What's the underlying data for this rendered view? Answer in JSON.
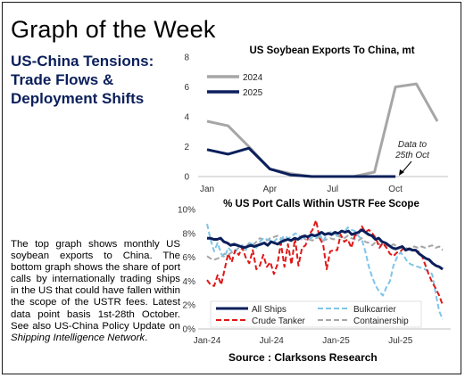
{
  "page": {
    "title": "Graph of the Week",
    "subtitle": "US-China Tensions: Trade Flows & Deployment Shifts",
    "description_parts": [
      "The top graph shows monthly US soybean exports to China. The bottom graph shows the share of port calls by internationally trading ships in the US that could have fallen within the scope of the USTR fees. Latest data point basis 1st-28th October. See also US-China Policy Update on ",
      "Shipping Intelligence Network",
      "."
    ],
    "source": "Source : Clarksons Research"
  },
  "chart_data": [
    {
      "type": "line",
      "title": "US Soybean Exports To China, mt",
      "x_tick_labels": [
        "Jan",
        "Apr",
        "Jul",
        "Oct"
      ],
      "y_ticks": [
        0,
        2,
        4,
        6,
        8
      ],
      "ylim": [
        0,
        8
      ],
      "months": 12,
      "series": [
        {
          "name": "2024",
          "color": "#a6a6a6",
          "values": [
            3.7,
            3.4,
            2.0,
            0.5,
            0.2,
            0.0,
            0.0,
            0.0,
            0.3,
            6.0,
            6.2,
            3.7
          ]
        },
        {
          "name": "2025",
          "color": "#0b1f5b",
          "values": [
            1.8,
            1.5,
            1.9,
            0.5,
            0.1,
            0.0,
            0.0,
            0.0,
            0.0,
            0.0
          ]
        }
      ],
      "annotation": "Data to 25th Oct",
      "legend": "top-left"
    },
    {
      "type": "line",
      "title": "% US Port Calls Within USTR Fee Scope",
      "x_tick_labels": [
        "Jan-24",
        "Jul-24",
        "Jan-25",
        "Jul-25"
      ],
      "y_ticks": [
        "0%",
        "2%",
        "4%",
        "6%",
        "8%",
        "10%"
      ],
      "ylim": [
        0,
        10
      ],
      "weeks": 96,
      "legend": "bottom",
      "series": [
        {
          "name": "All Ships",
          "color": "#0b1f5b",
          "style": "solid",
          "values": [
            7.6,
            7.6,
            7.5,
            7.5,
            7.6,
            7.3,
            7.2,
            7.0,
            7.1,
            7.0,
            6.9,
            6.8,
            6.9,
            7.0,
            6.9,
            7.0,
            7.1,
            7.2,
            7.0,
            7.3,
            7.2,
            7.1,
            7.3,
            7.4,
            7.5,
            7.4,
            7.6,
            7.5,
            7.7,
            7.8,
            7.7,
            7.9,
            7.8,
            7.9,
            8.1,
            7.9,
            8.0,
            7.9,
            8.1,
            8.0,
            8.2,
            8.1,
            8.2,
            7.9,
            8.0,
            8.1,
            8.3,
            8.1,
            7.9,
            7.8,
            7.5,
            7.6,
            7.3,
            7.2,
            7.0,
            6.8,
            6.7,
            6.8,
            6.9,
            6.6,
            6.7,
            6.6,
            6.6,
            6.3,
            6.1,
            5.9,
            5.8,
            5.5,
            5.3,
            5.2,
            5.0
          ]
        },
        {
          "name": "Bulkcarrier",
          "color": "#7fc4ea",
          "style": "dashed",
          "values": [
            8.8,
            7.5,
            6.5,
            7.2,
            6.3,
            6.0,
            6.8,
            6.5,
            6.4,
            6.9,
            7.0,
            6.6,
            7.2,
            7.1,
            6.8,
            7.3,
            7.6,
            7.5,
            7.4,
            7.3,
            7.6,
            7.5,
            7.8,
            7.6,
            7.7,
            8.0,
            7.9,
            7.4,
            7.8,
            7.5,
            7.7,
            7.6,
            8.0,
            7.3,
            7.9,
            8.1,
            8.1,
            7.8,
            8.2,
            8.1,
            8.5,
            8.3,
            8.2,
            7.8,
            7.5,
            6.5,
            5.2,
            4.3,
            3.6,
            3.1,
            2.8,
            3.5,
            4.0,
            5.3,
            6.0,
            6.4,
            6.1,
            5.6,
            5.4,
            5.3,
            5.2,
            5.1,
            5.0,
            4.8,
            4.6,
            3.0,
            1.5,
            0.8
          ]
        },
        {
          "name": "Crude Tanker",
          "color": "#e01818",
          "style": "dashed",
          "values": [
            4.1,
            3.7,
            3.6,
            4.5,
            3.7,
            5.0,
            6.3,
            5.6,
            6.6,
            6.2,
            6.8,
            6.0,
            5.5,
            6.6,
            5.0,
            5.3,
            6.2,
            5.2,
            5.6,
            4.6,
            5.4,
            7.2,
            5.2,
            7.1,
            5.4,
            7.6,
            5.3,
            6.8,
            7.0,
            7.9,
            8.3,
            9.1,
            7.6,
            7.1,
            5.0,
            6.5,
            6.6,
            6.6,
            7.9,
            7.3,
            7.5,
            6.8,
            7.8,
            7.9,
            8.6,
            8.1,
            8.3,
            8.0,
            7.6,
            6.8,
            7.2,
            6.8,
            6.3,
            6.1,
            6.4,
            6.5,
            6.8,
            6.7,
            6.7,
            6.6,
            6.5,
            6.2,
            5.4,
            4.6,
            3.9,
            3.4,
            2.8,
            2.0
          ]
        },
        {
          "name": "Containership",
          "color": "#a6a6a6",
          "style": "dashed",
          "values": [
            6.1,
            5.9,
            5.8,
            5.9,
            6.0,
            6.3,
            6.2,
            6.4,
            6.5,
            6.8,
            7.0,
            6.8,
            7.2,
            7.0,
            7.3,
            7.6,
            7.5,
            7.4,
            7.6,
            7.7,
            7.8,
            7.6,
            7.5,
            7.6,
            7.4,
            7.6,
            7.5,
            7.7,
            7.5,
            7.5,
            7.4,
            7.6,
            7.7,
            7.4,
            7.5,
            7.6,
            7.5,
            7.8,
            7.7,
            7.6,
            7.8,
            7.6,
            7.5,
            7.4,
            7.6,
            7.3,
            7.2,
            7.0,
            7.3,
            7.1,
            6.9,
            7.0,
            6.9,
            7.1,
            6.9,
            6.8,
            6.9,
            6.7,
            6.8,
            6.9,
            6.8,
            6.9,
            6.8,
            6.9,
            7.0,
            6.8,
            6.9,
            6.6
          ]
        }
      ]
    }
  ]
}
